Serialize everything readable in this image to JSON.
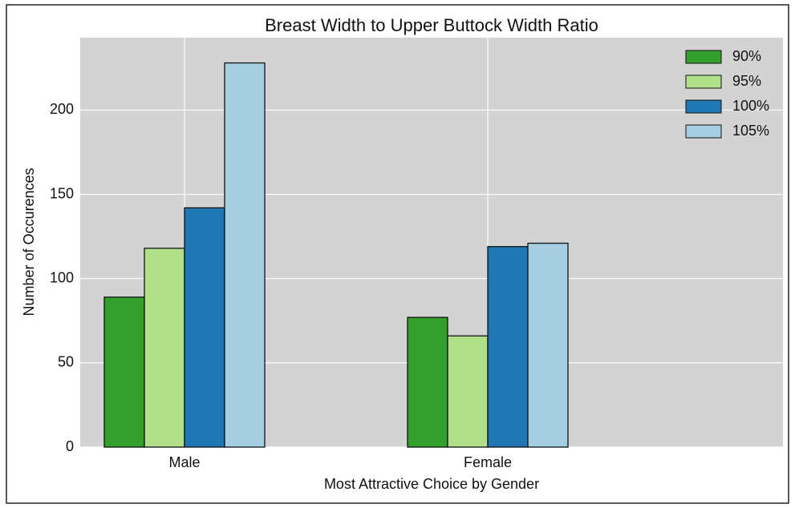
{
  "chart_data": {
    "type": "bar",
    "title": "Breast Width to Upper Buttock Width Ratio",
    "xlabel": "Most Attractive Choice by Gender",
    "ylabel": "Number of Occurences",
    "categories": [
      "Male",
      "Female"
    ],
    "series": [
      {
        "name": "90%",
        "color": "#33a02c",
        "values": [
          89,
          77
        ]
      },
      {
        "name": "95%",
        "color": "#b2df8a",
        "values": [
          118,
          66
        ]
      },
      {
        "name": "100%",
        "color": "#1f78b4",
        "values": [
          142,
          119
        ]
      },
      {
        "name": "105%",
        "color": "#a6cee3",
        "values": [
          228,
          121
        ]
      }
    ],
    "ylim": [
      0,
      243
    ],
    "yticks": [
      0,
      50,
      100,
      150,
      200
    ],
    "grid": true,
    "legend": "upper right"
  }
}
